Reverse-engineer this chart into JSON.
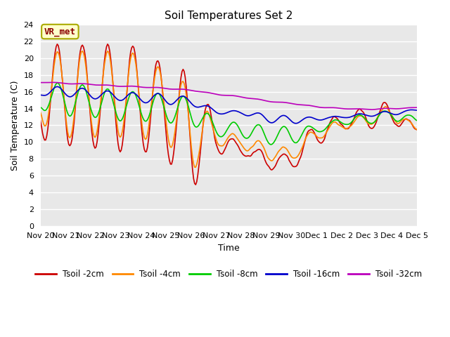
{
  "title": "Soil Temperatures Set 2",
  "xlabel": "Time",
  "ylabel": "Soil Temperature (C)",
  "ylim": [
    0,
    24
  ],
  "yticks": [
    0,
    2,
    4,
    6,
    8,
    10,
    12,
    14,
    16,
    18,
    20,
    22,
    24
  ],
  "xtick_labels": [
    "Nov 20",
    "Nov 21",
    "Nov 22",
    "Nov 23",
    "Nov 24",
    "Nov 25",
    "Nov 26",
    "Nov 27",
    "Nov 28",
    "Nov 29",
    "Nov 30",
    "Dec 1",
    "Dec 2",
    "Dec 3",
    "Dec 4",
    "Dec 5"
  ],
  "series_colors": {
    "Tsoil -2cm": "#cc0000",
    "Tsoil -4cm": "#ff8800",
    "Tsoil -8cm": "#00cc00",
    "Tsoil -16cm": "#0000cc",
    "Tsoil -32cm": "#bb00bb"
  },
  "bg_color": "#e8e8e8",
  "legend_label": "VR_met",
  "linewidth": 1.2,
  "n_days": 15,
  "pts_per_day": 24
}
